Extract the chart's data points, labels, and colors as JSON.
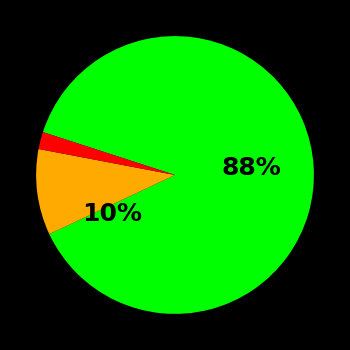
{
  "slices": [
    88,
    10,
    2
  ],
  "colors": [
    "#00ff00",
    "#ffaa00",
    "#ff0000"
  ],
  "labels": [
    "88%",
    "10%",
    ""
  ],
  "background_color": "#000000",
  "startangle": 162,
  "figsize": [
    3.5,
    3.5
  ],
  "dpi": 100,
  "label_fontsize": 18,
  "label_fontweight": "bold",
  "label_positions": [
    [
      0.55,
      0.05
    ],
    [
      -0.45,
      -0.28
    ],
    [
      null,
      null
    ]
  ]
}
